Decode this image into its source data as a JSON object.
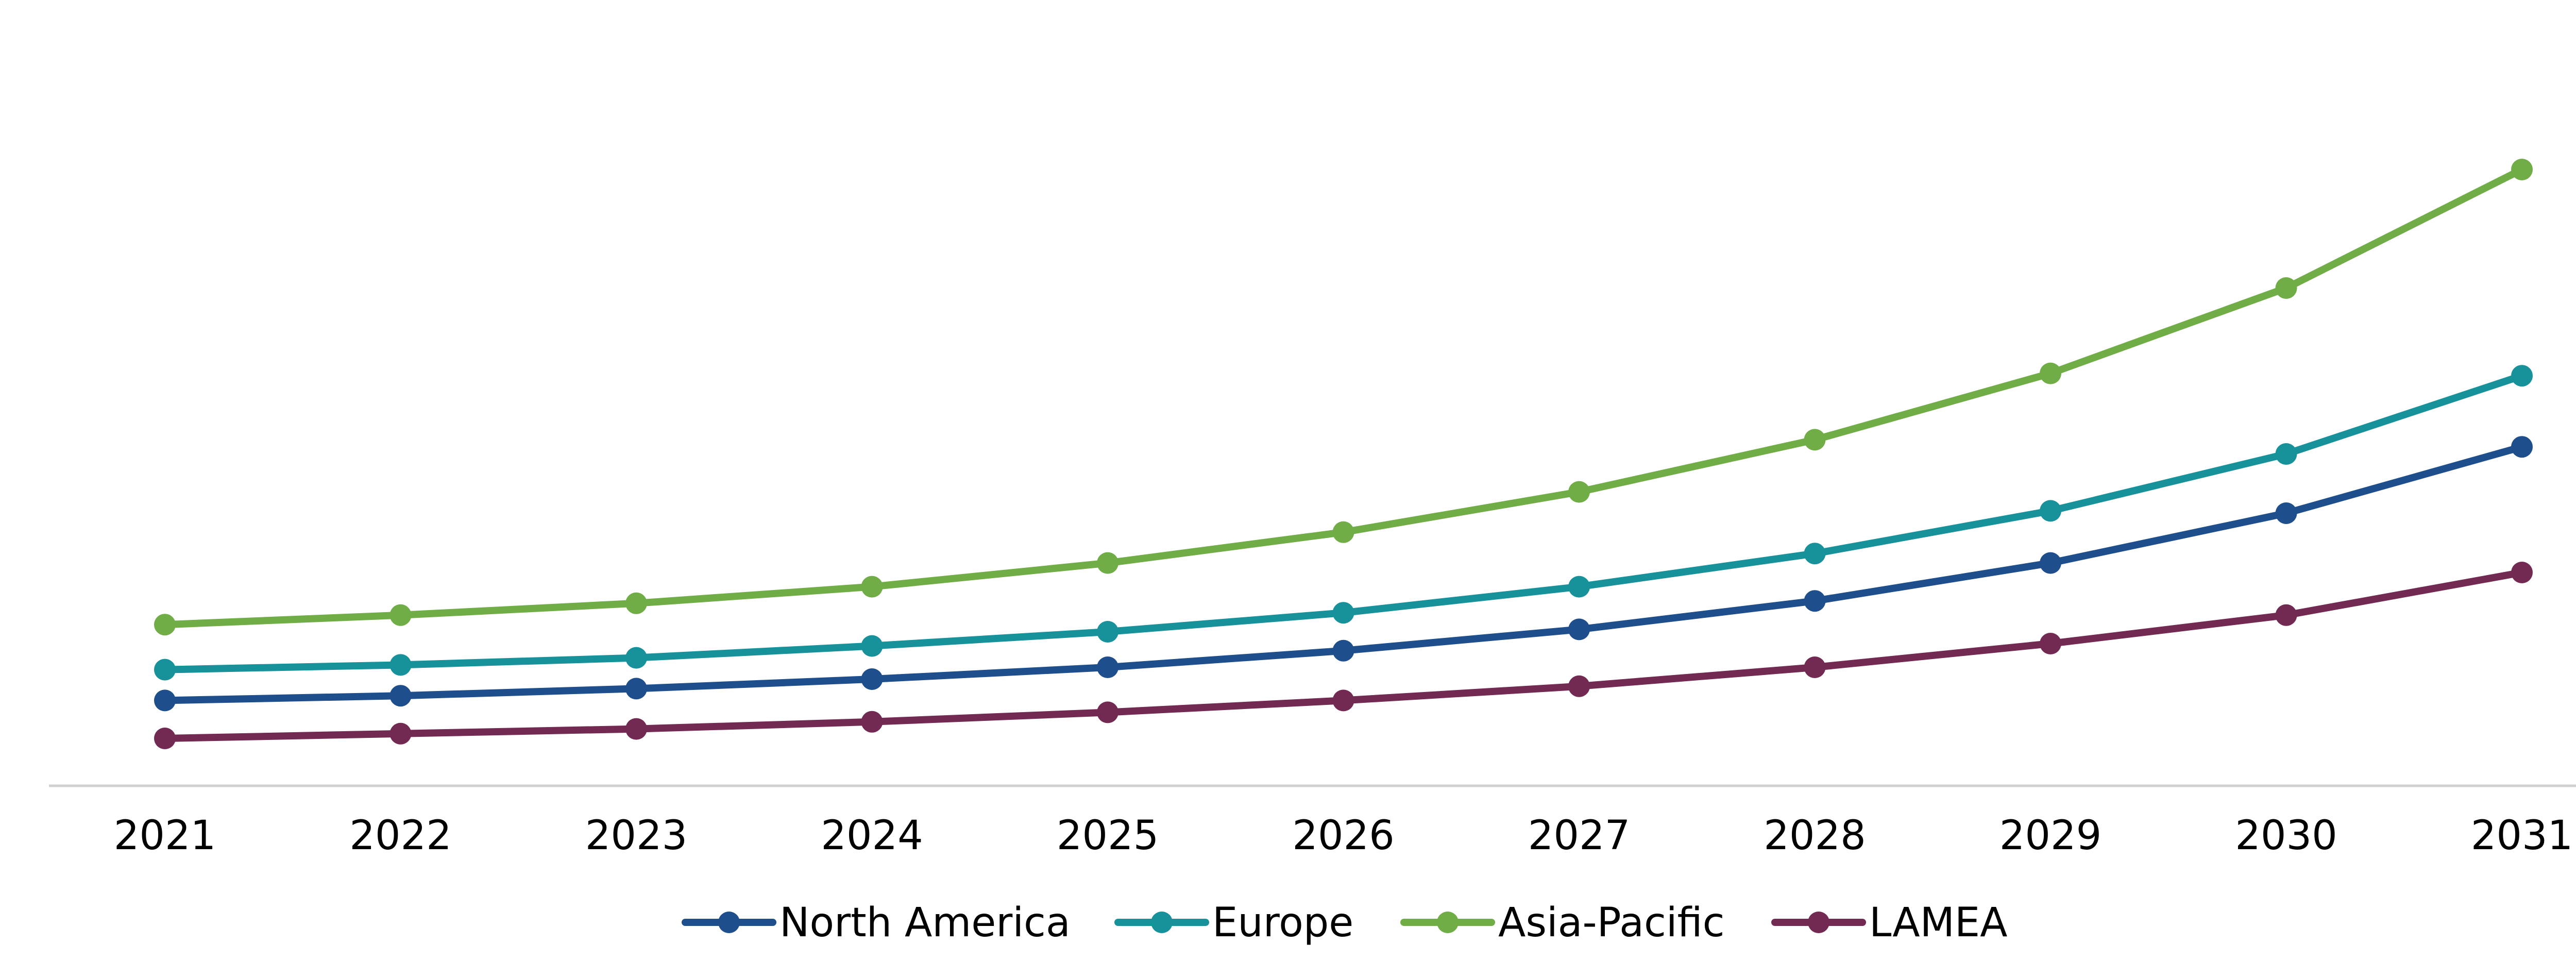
{
  "chart_data": {
    "type": "line",
    "title": "",
    "xlabel": "",
    "ylabel": "",
    "x": [
      "2021",
      "2022",
      "2023",
      "2024",
      "2025",
      "2026",
      "2027",
      "2028",
      "2029",
      "2030",
      "2031"
    ],
    "ylim": [
      0,
      125
    ],
    "grid": false,
    "legend_position": "bottom",
    "series": [
      {
        "name": "North America",
        "color": "#1f4e8c",
        "values": [
          18,
          19,
          20.5,
          22.5,
          25,
          28.5,
          33,
          39,
          47,
          57.5,
          71.5
        ]
      },
      {
        "name": "Europe",
        "color": "#17919a",
        "values": [
          24.5,
          25.5,
          27,
          29.5,
          32.5,
          36.5,
          42,
          49,
          58,
          70,
          86.5
        ]
      },
      {
        "name": "Asia-Pacific",
        "color": "#70ad47",
        "values": [
          34,
          36,
          38.5,
          42,
          47,
          53.5,
          62,
          73,
          87,
          105,
          130
        ]
      },
      {
        "name": "LAMEA",
        "color": "#722a52",
        "values": [
          10,
          11,
          12,
          13.5,
          15.5,
          18,
          21,
          25,
          30,
          36,
          45
        ]
      }
    ]
  }
}
